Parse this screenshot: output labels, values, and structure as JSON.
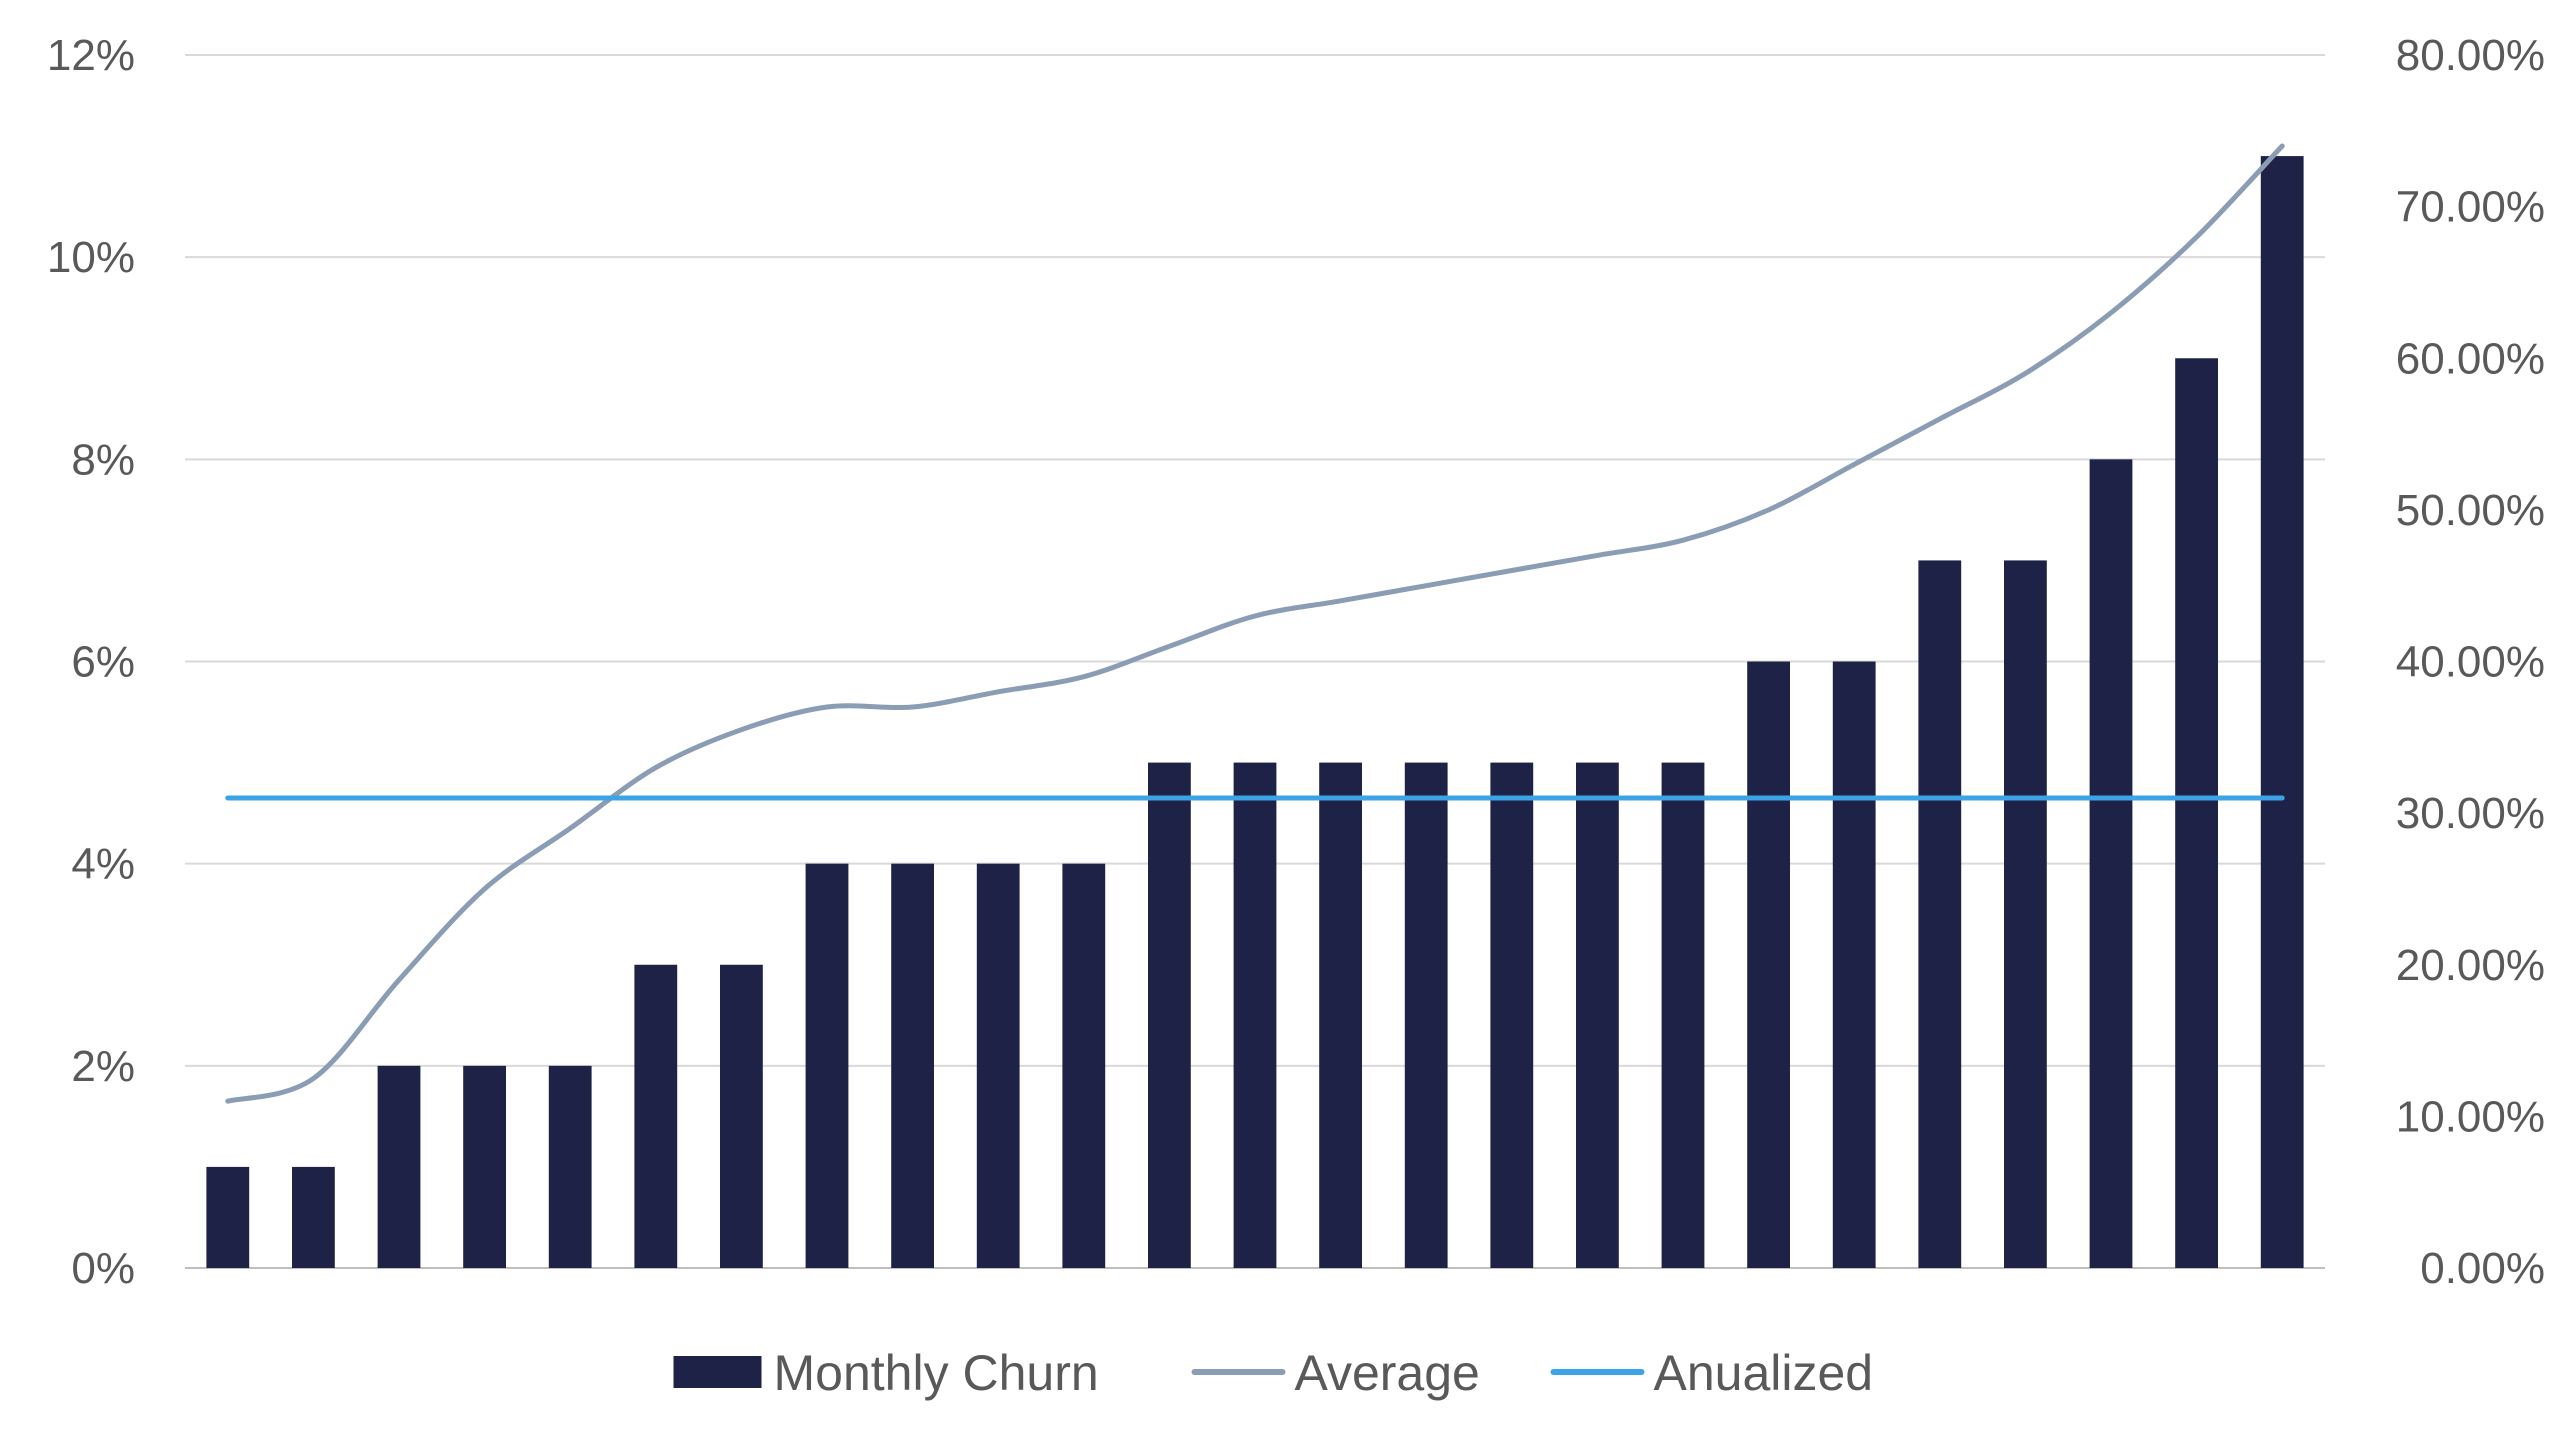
{
  "chart_data": {
    "type": "bar",
    "title": "",
    "xlabel": "",
    "ylabel": "",
    "categories": [
      "",
      "",
      "",
      "",
      "",
      "",
      "",
      "",
      "",
      "",
      "",
      "",
      "",
      "",
      "",
      "",
      "",
      "",
      "",
      "",
      "",
      "",
      "",
      "",
      ""
    ],
    "series": [
      {
        "name": "Monthly Churn",
        "type": "bar",
        "axis": "left",
        "color": "#1f2247",
        "values": [
          1,
          1,
          2,
          2,
          2,
          3,
          3,
          4,
          4,
          4,
          4,
          5,
          5,
          5,
          5,
          5,
          5,
          5,
          6,
          6,
          7,
          7,
          8,
          9,
          11
        ]
      },
      {
        "name": "Average",
        "type": "line",
        "axis": "right",
        "color": "#8a9db5",
        "values": [
          11.0,
          12.5,
          19.0,
          25.0,
          29.0,
          33.0,
          35.5,
          37.0,
          37.0,
          38.0,
          39.0,
          41.0,
          43.0,
          44.0,
          45.0,
          46.0,
          47.0,
          48.0,
          50.0,
          53.0,
          56.0,
          59.0,
          63.0,
          68.0,
          74.0
        ]
      },
      {
        "name": "Anualized",
        "type": "line",
        "axis": "right",
        "color": "#3ba3e6",
        "values": [
          31.0,
          31.0,
          31.0,
          31.0,
          31.0,
          31.0,
          31.0,
          31.0,
          31.0,
          31.0,
          31.0,
          31.0,
          31.0,
          31.0,
          31.0,
          31.0,
          31.0,
          31.0,
          31.0,
          31.0,
          31.0,
          31.0,
          31.0,
          31.0,
          31.0
        ]
      }
    ],
    "y_left": {
      "ylim": [
        0,
        12
      ],
      "ticks": [
        0,
        2,
        4,
        6,
        8,
        10,
        12
      ],
      "tick_labels": [
        "0%",
        "2%",
        "4%",
        "6%",
        "8%",
        "10%",
        "12%"
      ]
    },
    "y_right": {
      "ylim": [
        0,
        80
      ],
      "ticks": [
        0,
        10,
        20,
        30,
        40,
        50,
        60,
        70,
        80
      ],
      "tick_labels": [
        "0.00%",
        "10.00%",
        "20.00%",
        "30.00%",
        "40.00%",
        "50.00%",
        "60.00%",
        "70.00%",
        "80.00%"
      ]
    },
    "grid": true,
    "legend": {
      "position": "bottom",
      "items": [
        "Monthly Churn",
        "Average",
        "Anualized"
      ]
    },
    "colors": {
      "gridline": "#d9d9d9",
      "axis": "#bfbfbf",
      "text": "#595959"
    }
  }
}
